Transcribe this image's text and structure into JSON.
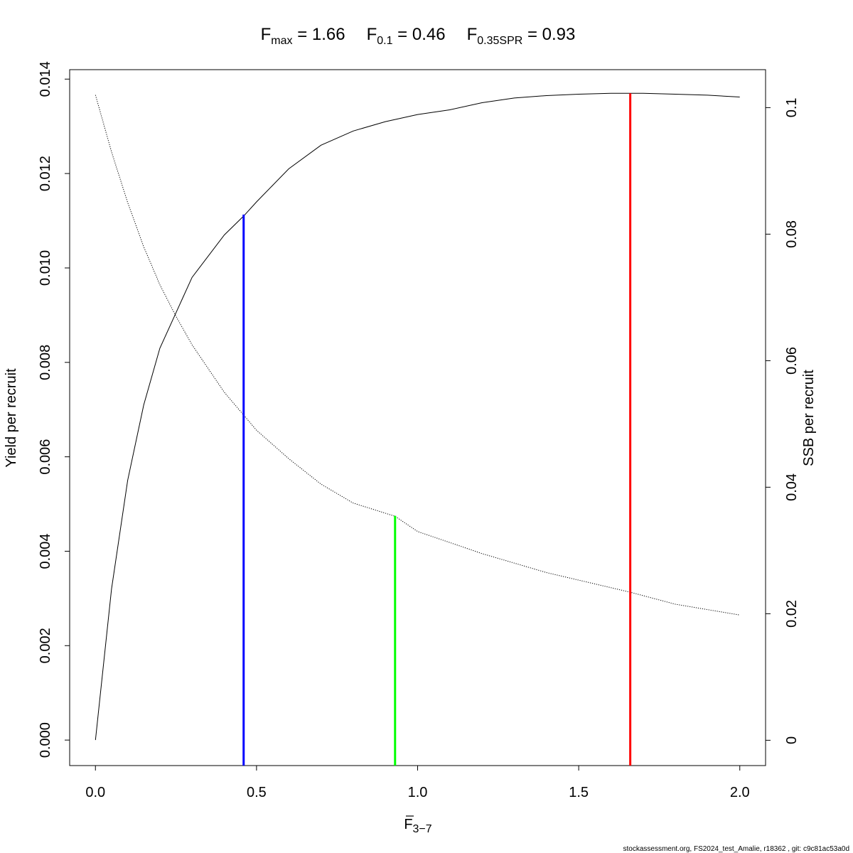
{
  "chart_data": {
    "type": "line",
    "title": {
      "parts": [
        {
          "sym": "F",
          "sub": "max",
          "eq": " = 1.66"
        },
        {
          "sym": "F",
          "sub": "0.1",
          "eq": " = 0.46"
        },
        {
          "sym": "F",
          "sub": "0.35SPR",
          "eq": " = 0.93"
        }
      ]
    },
    "xlabel": {
      "sym": "F",
      "sub": "3−7"
    },
    "ylabel_left": "Yield per recruit",
    "ylabel_right": "SSB per recruit",
    "xlim": [
      -0.08,
      2.08
    ],
    "ylim_left": [
      -0.00054,
      0.0142
    ],
    "ylim_right": [
      -0.004,
      0.106
    ],
    "x_ticks": [
      0.0,
      0.5,
      1.0,
      1.5,
      2.0
    ],
    "x_tick_labels": [
      "0.0",
      "0.5",
      "1.0",
      "1.5",
      "2.0"
    ],
    "y_left_ticks": [
      0,
      0.002,
      0.004,
      0.006,
      0.008,
      0.01,
      0.012,
      0.014
    ],
    "y_left_tick_labels": [
      "0.000",
      "0.002",
      "0.004",
      "0.006",
      "0.008",
      "0.010",
      "0.012",
      "0.014"
    ],
    "y_right_ticks": [
      0,
      0.02,
      0.04,
      0.06,
      0.08,
      0.1
    ],
    "y_right_tick_labels": [
      "0",
      "0.02",
      "0.04",
      "0.06",
      "0.08",
      "0.1"
    ],
    "series": [
      {
        "name": "Yield per recruit",
        "axis": "left",
        "style": "solid",
        "color": "#000000",
        "x": [
          0.0,
          0.05,
          0.1,
          0.15,
          0.2,
          0.3,
          0.4,
          0.46,
          0.5,
          0.6,
          0.7,
          0.8,
          0.9,
          1.0,
          1.1,
          1.2,
          1.3,
          1.4,
          1.5,
          1.6,
          1.66,
          1.7,
          1.8,
          1.9,
          2.0
        ],
        "y": [
          0.0,
          0.0032,
          0.0055,
          0.0071,
          0.0083,
          0.0098,
          0.0107,
          0.0111,
          0.0114,
          0.0121,
          0.0126,
          0.0129,
          0.0131,
          0.01325,
          0.01335,
          0.0135,
          0.0136,
          0.01365,
          0.01368,
          0.0137,
          0.0137,
          0.0137,
          0.01368,
          0.01366,
          0.01362
        ]
      },
      {
        "name": "SSB per recruit",
        "axis": "right",
        "style": "dotted",
        "color": "#000000",
        "x": [
          0.0,
          0.05,
          0.1,
          0.15,
          0.2,
          0.25,
          0.3,
          0.4,
          0.5,
          0.6,
          0.7,
          0.8,
          0.93,
          1.0,
          1.2,
          1.4,
          1.66,
          1.8,
          2.0
        ],
        "y": [
          0.102,
          0.093,
          0.085,
          0.078,
          0.072,
          0.067,
          0.0625,
          0.055,
          0.049,
          0.0445,
          0.0405,
          0.0375,
          0.0354,
          0.033,
          0.0295,
          0.0265,
          0.0234,
          0.0215,
          0.0198
        ]
      }
    ],
    "reference_lines": [
      {
        "name": "F0.1",
        "x": 0.46,
        "y_top_left": 0.01113,
        "color": "#0000ff"
      },
      {
        "name": "F0.35SPR",
        "x": 0.93,
        "y_top_left": 0.00475,
        "color": "#00ff00"
      },
      {
        "name": "Fmax",
        "x": 1.66,
        "y_top_left": 0.0137,
        "color": "#ff0000"
      }
    ],
    "grid": false,
    "legend": "none"
  },
  "footer": "stockassessment.org, FS2024_test_Amalie, r18362 , git: c9c81ac53a0d"
}
